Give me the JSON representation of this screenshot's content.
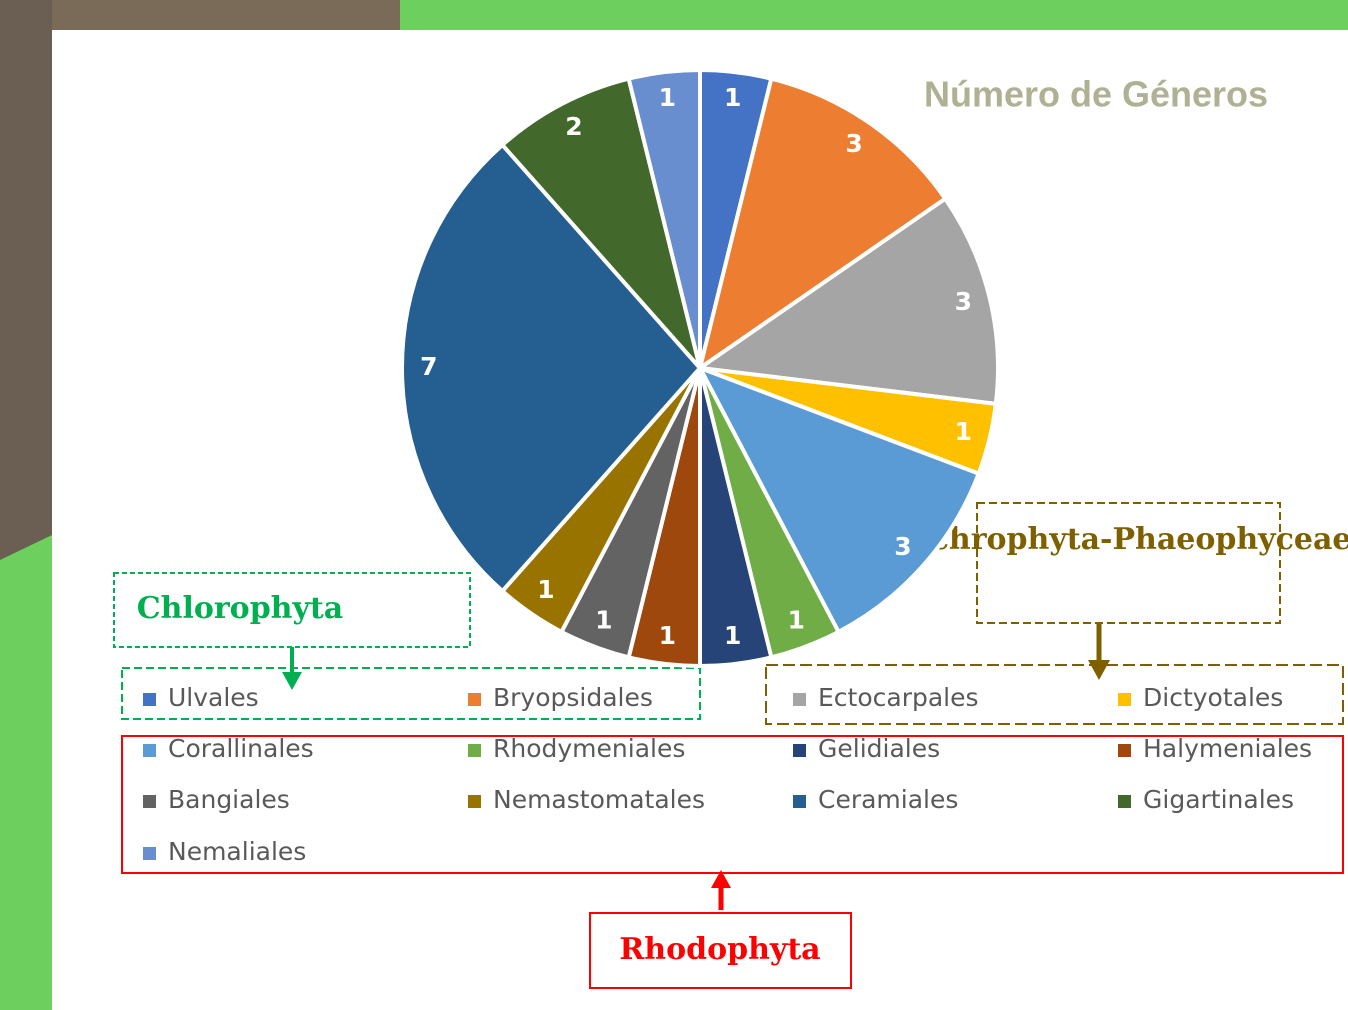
{
  "chart_data": {
    "type": "pie",
    "title": "Número de Géneros",
    "categories": [
      "Ulvales",
      "Bryopsidales",
      "Ectocarpales",
      "Dictyotales",
      "Corallinales",
      "Rhodymeniales",
      "Gelidiales",
      "Halymeniales",
      "Bangiales",
      "Nemastomatales",
      "Ceramiales",
      "Gigartinales",
      "Nemaliales"
    ],
    "values": [
      1,
      3,
      3,
      1,
      3,
      1,
      1,
      1,
      1,
      1,
      7,
      2,
      1
    ],
    "colors": [
      "#4472c4",
      "#ed7d31",
      "#a5a5a5",
      "#ffc000",
      "#5b9bd5",
      "#70ad47",
      "#264478",
      "#9e480e",
      "#636363",
      "#997300",
      "#255e91",
      "#43682b",
      "#698ed0"
    ],
    "annotations": [
      "Chlorophyta",
      "Ochrophyta-Phaeophyceae",
      "Rhodophyta"
    ]
  }
}
